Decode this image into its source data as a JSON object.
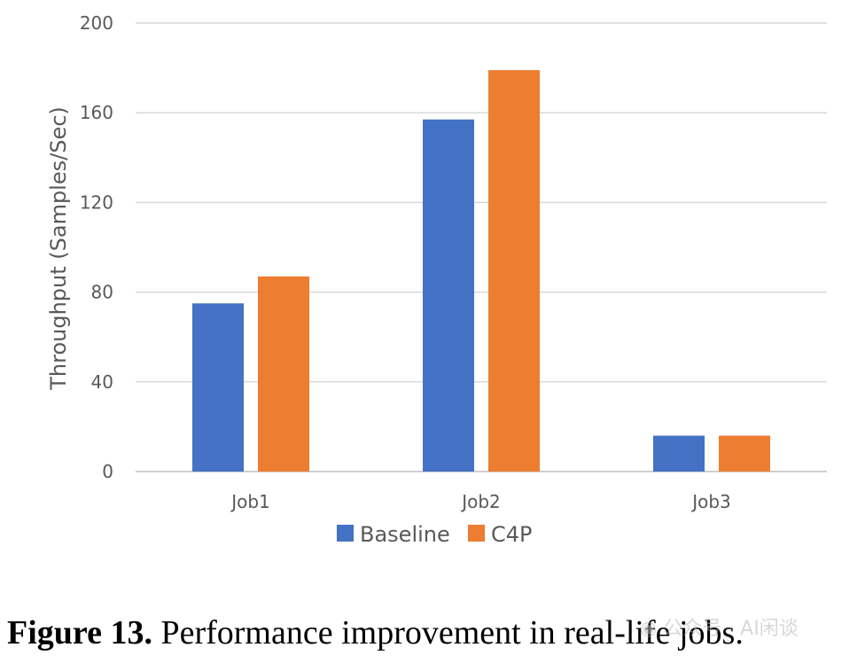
{
  "chart_data": {
    "type": "bar",
    "categories": [
      "Job1",
      "Job2",
      "Job3"
    ],
    "series": [
      {
        "name": "Baseline",
        "color": "#4472C4",
        "values": [
          75,
          157,
          16
        ]
      },
      {
        "name": "C4P",
        "color": "#ED7D31",
        "values": [
          87,
          179,
          16
        ]
      }
    ],
    "ylabel": "Throughput (Samples/Sec)",
    "xlabel": "",
    "ylim": [
      0,
      200
    ],
    "yticks": [
      "0",
      "40",
      "80",
      "120",
      "160",
      "200"
    ],
    "grid": true,
    "legend_placement": "bottom"
  },
  "caption": {
    "label": "Figure 13.",
    "text": " Performance improvement in real-life jobs."
  },
  "watermark": {
    "text": "公众号 · AI闲谈",
    "icon": "wechat-icon"
  }
}
